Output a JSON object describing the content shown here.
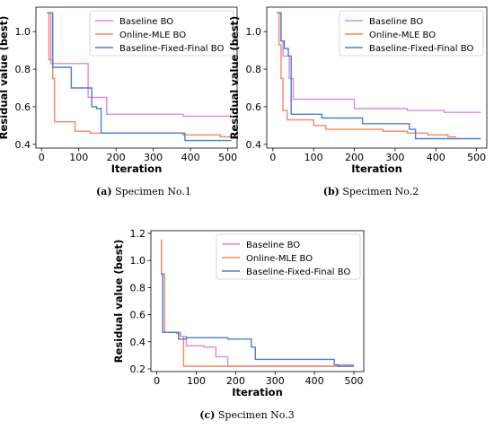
{
  "figure": {
    "captions": [
      {
        "label": "(a)",
        "text": " Specimen No.1"
      },
      {
        "label": "(b)",
        "text": " Specimen No.2"
      },
      {
        "label": "(c)",
        "text": " Specimen No.3"
      }
    ]
  },
  "colors": {
    "baseline": "#dd88dd",
    "online_mle": "#f4895f",
    "fixed_final": "#4a7fd4"
  },
  "chart_data": [
    {
      "type": "line",
      "xlabel": "Iteration",
      "ylabel": "Residual value (best)",
      "xlim": [
        -15,
        525
      ],
      "ylim": [
        0.38,
        1.13
      ],
      "xticks": [
        0,
        100,
        200,
        300,
        400,
        500
      ],
      "yticks": [
        0.4,
        0.6,
        0.8,
        1.0
      ],
      "ytick_labels": [
        "0.4",
        "0.6",
        "0.8",
        "1.0"
      ],
      "legend_position": "top-right",
      "grid": false,
      "series": [
        {
          "name": "Baseline BO",
          "color_key": "baseline",
          "points": [
            [
              15,
              1.1
            ],
            [
              25,
              1.1
            ],
            [
              25,
              0.83
            ],
            [
              125,
              0.83
            ],
            [
              125,
              0.65
            ],
            [
              175,
              0.65
            ],
            [
              175,
              0.56
            ],
            [
              380,
              0.56
            ],
            [
              380,
              0.55
            ],
            [
              510,
              0.55
            ]
          ]
        },
        {
          "name": "Online-MLE BO",
          "color_key": "online_mle",
          "points": [
            [
              15,
              1.1
            ],
            [
              20,
              1.1
            ],
            [
              20,
              0.85
            ],
            [
              30,
              0.85
            ],
            [
              30,
              0.75
            ],
            [
              35,
              0.75
            ],
            [
              35,
              0.52
            ],
            [
              90,
              0.52
            ],
            [
              90,
              0.47
            ],
            [
              130,
              0.47
            ],
            [
              130,
              0.46
            ],
            [
              380,
              0.46
            ],
            [
              380,
              0.45
            ],
            [
              480,
              0.45
            ],
            [
              480,
              0.44
            ],
            [
              510,
              0.44
            ]
          ]
        },
        {
          "name": "Baseline-Fixed-Final BO",
          "color_key": "fixed_final",
          "points": [
            [
              15,
              1.1
            ],
            [
              30,
              1.1
            ],
            [
              30,
              0.81
            ],
            [
              80,
              0.81
            ],
            [
              80,
              0.7
            ],
            [
              135,
              0.7
            ],
            [
              135,
              0.6
            ],
            [
              148,
              0.6
            ],
            [
              148,
              0.59
            ],
            [
              160,
              0.59
            ],
            [
              160,
              0.46
            ],
            [
              385,
              0.46
            ],
            [
              385,
              0.42
            ],
            [
              510,
              0.42
            ]
          ]
        }
      ]
    },
    {
      "type": "line",
      "xlabel": "Iteration",
      "ylabel": "Residual value (best)",
      "xlim": [
        -15,
        525
      ],
      "ylim": [
        0.38,
        1.13
      ],
      "xticks": [
        0,
        100,
        200,
        300,
        400,
        500
      ],
      "yticks": [
        0.4,
        0.6,
        0.8,
        1.0
      ],
      "ytick_labels": [
        "0.4",
        "0.6",
        "0.8",
        "1.0"
      ],
      "legend_position": "top-right",
      "grid": false,
      "series": [
        {
          "name": "Baseline BO",
          "color_key": "baseline",
          "points": [
            [
              10,
              1.1
            ],
            [
              20,
              1.1
            ],
            [
              20,
              0.95
            ],
            [
              25,
              0.95
            ],
            [
              25,
              0.87
            ],
            [
              40,
              0.87
            ],
            [
              40,
              0.75
            ],
            [
              50,
              0.75
            ],
            [
              50,
              0.64
            ],
            [
              200,
              0.64
            ],
            [
              200,
              0.59
            ],
            [
              330,
              0.59
            ],
            [
              330,
              0.58
            ],
            [
              420,
              0.58
            ],
            [
              420,
              0.57
            ],
            [
              510,
              0.57
            ]
          ]
        },
        {
          "name": "Online-MLE BO",
          "color_key": "online_mle",
          "points": [
            [
              10,
              1.1
            ],
            [
              15,
              1.1
            ],
            [
              15,
              0.93
            ],
            [
              20,
              0.93
            ],
            [
              20,
              0.75
            ],
            [
              25,
              0.75
            ],
            [
              25,
              0.58
            ],
            [
              35,
              0.58
            ],
            [
              35,
              0.53
            ],
            [
              100,
              0.53
            ],
            [
              100,
              0.5
            ],
            [
              130,
              0.5
            ],
            [
              130,
              0.48
            ],
            [
              270,
              0.48
            ],
            [
              270,
              0.47
            ],
            [
              330,
              0.47
            ],
            [
              330,
              0.46
            ],
            [
              380,
              0.46
            ],
            [
              380,
              0.45
            ],
            [
              430,
              0.45
            ],
            [
              430,
              0.44
            ],
            [
              450,
              0.44
            ]
          ]
        },
        {
          "name": "Baseline-Fixed-Final BO",
          "color_key": "fixed_final",
          "points": [
            [
              10,
              1.1
            ],
            [
              20,
              1.1
            ],
            [
              20,
              0.95
            ],
            [
              28,
              0.95
            ],
            [
              28,
              0.91
            ],
            [
              38,
              0.91
            ],
            [
              38,
              0.87
            ],
            [
              45,
              0.87
            ],
            [
              45,
              0.56
            ],
            [
              120,
              0.56
            ],
            [
              120,
              0.54
            ],
            [
              220,
              0.54
            ],
            [
              220,
              0.51
            ],
            [
              335,
              0.51
            ],
            [
              335,
              0.48
            ],
            [
              350,
              0.48
            ],
            [
              350,
              0.43
            ],
            [
              510,
              0.43
            ]
          ]
        }
      ]
    },
    {
      "type": "line",
      "xlabel": "Iteration",
      "ylabel": "Residual value (best)",
      "xlim": [
        -15,
        525
      ],
      "ylim": [
        0.18,
        1.22
      ],
      "xticks": [
        0,
        100,
        200,
        300,
        400,
        500
      ],
      "yticks": [
        0.2,
        0.4,
        0.6,
        0.8,
        1.0,
        1.2
      ],
      "ytick_labels": [
        "0.2",
        "0.4",
        "0.6",
        "0.8",
        "1.0",
        "1.2"
      ],
      "legend_position": "top-right",
      "grid": false,
      "series": [
        {
          "name": "Baseline BO",
          "color_key": "baseline",
          "points": [
            [
              10,
              1.15
            ],
            [
              12,
              1.15
            ],
            [
              12,
              0.9
            ],
            [
              15,
              0.9
            ],
            [
              15,
              0.47
            ],
            [
              50,
              0.47
            ],
            [
              50,
              0.46
            ],
            [
              60,
              0.46
            ],
            [
              60,
              0.44
            ],
            [
              75,
              0.44
            ],
            [
              75,
              0.37
            ],
            [
              120,
              0.37
            ],
            [
              120,
              0.36
            ],
            [
              150,
              0.36
            ],
            [
              150,
              0.29
            ],
            [
              180,
              0.29
            ],
            [
              180,
              0.22
            ],
            [
              460,
              0.22
            ],
            [
              460,
              0.23
            ],
            [
              500,
              0.23
            ]
          ]
        },
        {
          "name": "Online-MLE BO",
          "color_key": "online_mle",
          "points": [
            [
              10,
              1.15
            ],
            [
              12,
              1.15
            ],
            [
              12,
              0.9
            ],
            [
              20,
              0.9
            ],
            [
              20,
              0.47
            ],
            [
              60,
              0.47
            ],
            [
              60,
              0.44
            ],
            [
              68,
              0.44
            ],
            [
              68,
              0.22
            ],
            [
              500,
              0.22
            ]
          ]
        },
        {
          "name": "Baseline-Fixed-Final BO",
          "color_key": "fixed_final",
          "points": [
            [
              10,
              0.9
            ],
            [
              15,
              0.9
            ],
            [
              15,
              0.47
            ],
            [
              55,
              0.47
            ],
            [
              55,
              0.42
            ],
            [
              75,
              0.42
            ],
            [
              75,
              0.43
            ],
            [
              180,
              0.43
            ],
            [
              180,
              0.42
            ],
            [
              240,
              0.42
            ],
            [
              240,
              0.36
            ],
            [
              250,
              0.36
            ],
            [
              250,
              0.27
            ],
            [
              450,
              0.27
            ],
            [
              450,
              0.23
            ],
            [
              460,
              0.23
            ],
            [
              460,
              0.22
            ],
            [
              500,
              0.22
            ]
          ]
        }
      ]
    }
  ]
}
